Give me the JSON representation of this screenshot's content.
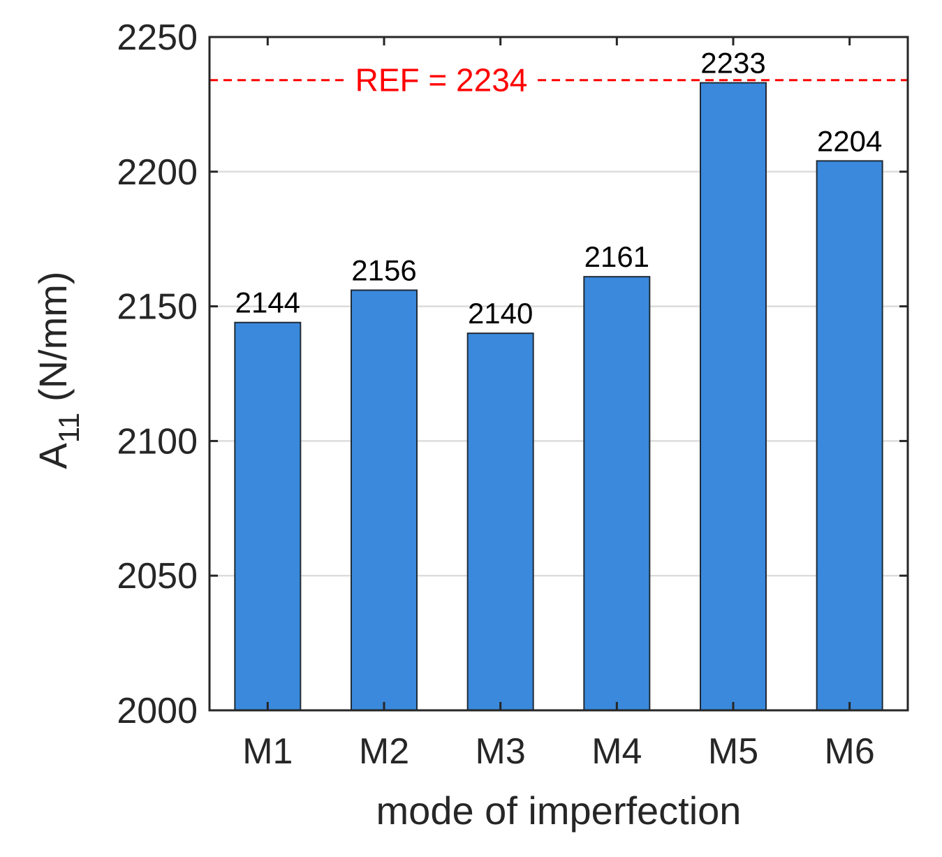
{
  "chart_data": {
    "type": "bar",
    "categories": [
      "M1",
      "M2",
      "M3",
      "M4",
      "M5",
      "M6"
    ],
    "values": [
      2144,
      2156,
      2140,
      2161,
      2233,
      2204
    ],
    "data_labels": [
      "2144",
      "2156",
      "2140",
      "2161",
      "2233",
      "2204"
    ],
    "title": "",
    "xlabel": "mode of imperfection",
    "ylabel_main": "A",
    "ylabel_sub": "11",
    "ylabel_unit": " (N/mm)",
    "ylim": [
      2000,
      2250
    ],
    "yticks": [
      2000,
      2050,
      2100,
      2150,
      2200,
      2250
    ],
    "ytick_labels": [
      "2000",
      "2050",
      "2100",
      "2150",
      "2200",
      "2250"
    ],
    "grid": "horizontal",
    "reference": {
      "value": 2234,
      "label": "REF = 2234",
      "color": "#ff0000",
      "style": "dashed"
    },
    "colors": {
      "bar": "#3a89dc",
      "bar_edge": "#1f2a36",
      "axis": "#262626",
      "grid": "#dcdcdc"
    }
  }
}
